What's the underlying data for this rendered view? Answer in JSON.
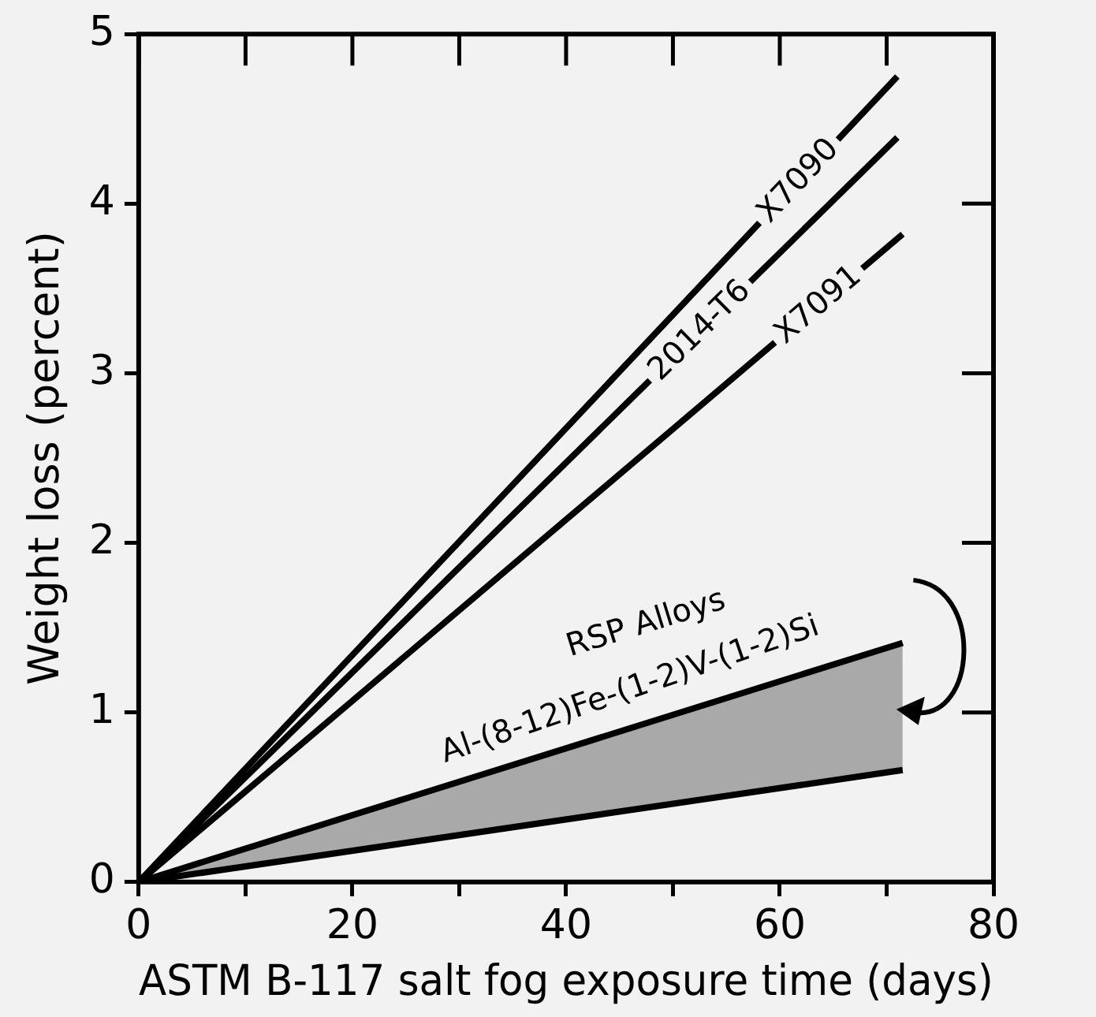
{
  "chart_data": {
    "type": "line",
    "xlabel": "ASTM B-117 salt fog exposure time (days)",
    "ylabel": "Weight loss (percent)",
    "xlim": [
      0,
      80
    ],
    "ylim": [
      0,
      5
    ],
    "xticks": [
      0,
      {
        "value": 10,
        "label": null
      },
      20,
      {
        "value": 30,
        "label": null
      },
      40,
      {
        "value": 50,
        "label": null
      },
      60,
      {
        "value": 70,
        "label": null
      },
      80
    ],
    "yticks": [
      0,
      1,
      2,
      3,
      4,
      5
    ],
    "marker": "none",
    "line_style": "solid",
    "legend": false,
    "series": [
      {
        "name": "X7090",
        "color": "#000000",
        "x": [
          0,
          71
        ],
        "values": [
          0,
          4.75
        ]
      },
      {
        "name": "2014-T6",
        "color": "#000000",
        "x": [
          0,
          71
        ],
        "values": [
          0,
          4.39
        ]
      },
      {
        "name": "X7091",
        "color": "#000000",
        "x": [
          0,
          71.5
        ],
        "values": [
          0,
          3.82
        ]
      },
      {
        "name": "RSP Alloys",
        "color": "#000000",
        "x": [
          0,
          71.5
        ],
        "values": [
          0,
          1.41
        ],
        "lower": [
          0,
          0.66
        ],
        "upper": [
          0,
          1.41
        ]
      },
      {
        "color": "#000000",
        "x": [
          0,
          71.5
        ],
        "values": [
          0,
          0.66
        ]
      }
    ],
    "annotations": [
      "Al-(8-12)Fe-(1-2)V-(1-2)Si"
    ]
  }
}
